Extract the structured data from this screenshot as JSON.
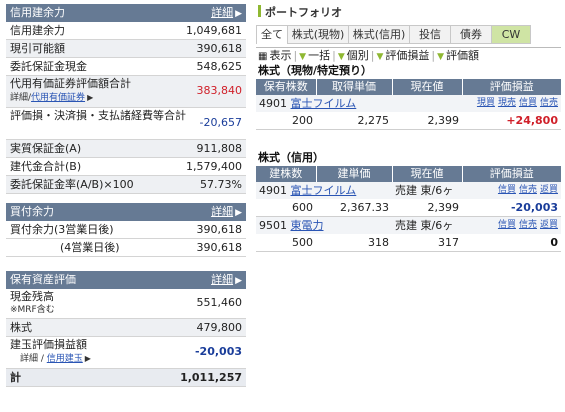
{
  "margin_panel": {
    "title": "信用建余力",
    "detail_label": "詳細",
    "rows": [
      {
        "label": "信用建余力",
        "value": "1,049,681"
      },
      {
        "label": "現引可能額",
        "value": "390,618"
      },
      {
        "label": "委託保証金現金",
        "value": "548,625"
      },
      {
        "label": "代用有価証券評価額合計",
        "value": "383,840",
        "sub_prefix": "詳細/",
        "sub_link": "代用有価証券"
      },
      {
        "label": "評価損・決済損・支払諸経費等合計",
        "value": "-20,657"
      },
      {
        "label": "実質保証金(A)",
        "value": "911,808"
      },
      {
        "label": "建代金合計(B)",
        "value": "1,579,400"
      },
      {
        "label": "委託保証金率(A/B)×100",
        "value": "57.73%"
      }
    ]
  },
  "buying_panel": {
    "title": "買付余力",
    "detail_label": "詳細",
    "rows": [
      {
        "label": "買付余力(3営業日後)",
        "value": "390,618"
      },
      {
        "label": "(4営業日後)",
        "value": "390,618"
      }
    ]
  },
  "assets_panel": {
    "title": "保有資産評価",
    "detail_label": "詳細",
    "rows": [
      {
        "label": "現金残高",
        "sub": "※MRF含む",
        "value": "551,460"
      },
      {
        "label": "株式",
        "value": "479,800"
      },
      {
        "label": "建玉評価損益額",
        "sub_prefix": "詳細 / ",
        "sub_link": "信用建玉",
        "value": "-20,003"
      }
    ],
    "total": {
      "label": "計",
      "value": "1,011,257"
    }
  },
  "portfolio": {
    "title": "ポートフォリオ",
    "tabs": [
      "全て",
      "株式(現物)",
      "株式(信用)",
      "投信",
      "債券",
      "CW"
    ],
    "filters": {
      "display_label": "表示",
      "items": [
        "一括",
        "個別",
        "評価損益",
        "評価額"
      ]
    },
    "cash_section": {
      "title": "株式（現物/特定預り）",
      "headers": [
        "保有株数",
        "取得単価",
        "現在値",
        "評価損益"
      ],
      "actions": [
        "現買",
        "現売",
        "信買",
        "信売"
      ],
      "rows": [
        {
          "code": "4901",
          "name": "富士フイルム",
          "shares": "200",
          "cost": "2,275",
          "price": "2,399",
          "pl": "+24,800"
        }
      ]
    },
    "margin_section": {
      "title": "株式（信用）",
      "headers": [
        "建株数",
        "建単価",
        "現在値",
        "評価損益"
      ],
      "actions": [
        "信買",
        "信売",
        "返買"
      ],
      "rows": [
        {
          "code": "4901",
          "name": "富士フイルム",
          "side": "売建",
          "market": "東/6ヶ",
          "shares": "600",
          "cost": "2,367.33",
          "price": "2,399",
          "pl": "-20,003"
        },
        {
          "code": "9501",
          "name": "東電力",
          "side": "売建",
          "market": "東/6ヶ",
          "shares": "500",
          "cost": "318",
          "price": "317",
          "pl": "0"
        }
      ]
    }
  }
}
